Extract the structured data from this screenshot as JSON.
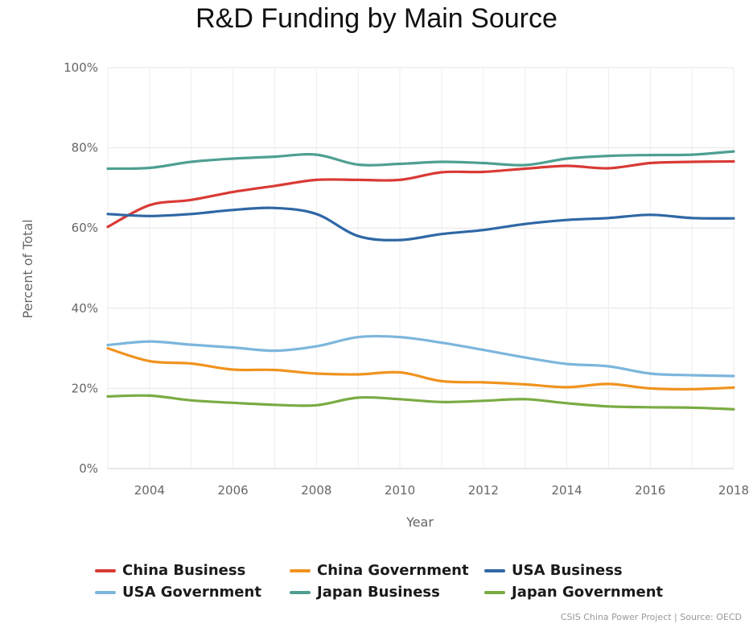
{
  "chart_data": {
    "type": "line",
    "title": "R&D Funding by Main Source",
    "xlabel": "Year",
    "ylabel": "Percent of Total",
    "xlim": [
      2003,
      2018
    ],
    "ylim": [
      0,
      100
    ],
    "x": [
      2003,
      2004,
      2005,
      2006,
      2007,
      2008,
      2009,
      2010,
      2011,
      2012,
      2013,
      2014,
      2015,
      2016,
      2017,
      2018
    ],
    "x_ticks": [
      "2004",
      "2006",
      "2008",
      "2010",
      "2012",
      "2014",
      "2016",
      "2018"
    ],
    "y_ticks": [
      "0%",
      "20%",
      "40%",
      "60%",
      "80%",
      "100%"
    ],
    "grid": true,
    "legend_position": "bottom",
    "series": [
      {
        "name": "China Business",
        "color": "#d93a35",
        "values": [
          60.3,
          65.7,
          67.0,
          69.0,
          70.5,
          72.0,
          72.0,
          72.0,
          73.9,
          74.0,
          74.8,
          75.5,
          74.9,
          76.2,
          76.5,
          76.6
        ]
      },
      {
        "name": "China Government",
        "color": "#f0931f",
        "values": [
          30.0,
          26.8,
          26.2,
          24.7,
          24.6,
          23.7,
          23.5,
          24.0,
          21.8,
          21.5,
          21.0,
          20.3,
          21.1,
          20.0,
          19.8,
          20.2
        ]
      },
      {
        "name": "USA Business",
        "color": "#2f67a5",
        "values": [
          63.5,
          63.0,
          63.5,
          64.5,
          65.0,
          63.5,
          58.0,
          57.0,
          58.5,
          59.5,
          61.0,
          62.0,
          62.5,
          63.3,
          62.5,
          62.4
        ]
      },
      {
        "name": "USA Government",
        "color": "#7cb6dc",
        "values": [
          30.8,
          31.7,
          30.9,
          30.2,
          29.4,
          30.5,
          32.8,
          32.8,
          31.4,
          29.6,
          27.7,
          26.1,
          25.5,
          23.7,
          23.3,
          23.1
        ]
      },
      {
        "name": "Japan Business",
        "color": "#4e9f91",
        "values": [
          74.8,
          75.0,
          76.5,
          77.3,
          77.8,
          78.3,
          75.8,
          76.0,
          76.5,
          76.2,
          75.7,
          77.3,
          78.0,
          78.2,
          78.3,
          79.1
        ]
      },
      {
        "name": "Japan Government",
        "color": "#7aab43",
        "values": [
          18.0,
          18.2,
          17.0,
          16.4,
          15.9,
          15.8,
          17.7,
          17.3,
          16.6,
          16.9,
          17.3,
          16.3,
          15.5,
          15.3,
          15.2,
          14.8
        ]
      }
    ]
  },
  "source_note": "CSIS China Power Project | Source: OECD",
  "brand_color": "#111111"
}
